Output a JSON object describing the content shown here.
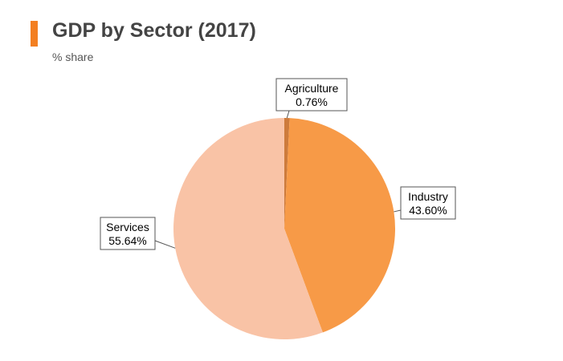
{
  "header": {
    "title": "GDP by Sector (2017)",
    "subtitle": "% share",
    "accent_color": "#f37f21"
  },
  "chart_data": {
    "type": "pie",
    "title": "GDP by Sector (2017)",
    "subtitle": "% share",
    "slices": [
      {
        "name": "Agriculture",
        "value": 0.76,
        "label": "0.76%",
        "color": "#cd7b3c"
      },
      {
        "name": "Industry",
        "value": 43.6,
        "label": "43.60%",
        "color": "#f79a47"
      },
      {
        "name": "Services",
        "value": 55.64,
        "label": "55.64%",
        "color": "#f9c3a6"
      }
    ],
    "start_angle": "top (12 o'clock), clockwise",
    "legend": "none (labels on callouts)"
  }
}
